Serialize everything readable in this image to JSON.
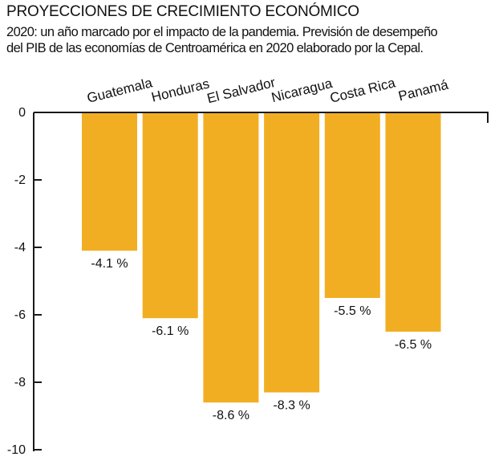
{
  "header": {
    "title": "PROYECCIONES DE CRECIMIENTO ECONÓMICO",
    "subtitle_line1": "2020: un año marcado por el impacto de la pandemia. Previsión de desempeño",
    "subtitle_line2": "del PIB de las economías de Centroamérica en 2020 elaborado por la Cepal."
  },
  "chart_data": {
    "type": "bar",
    "title": "PROYECCIONES DE CRECIMIENTO ECONÓMICO",
    "categories": [
      "Guatemala",
      "Honduras",
      "El Salvador",
      "Nicaragua",
      "Costa Rica",
      "Panamá"
    ],
    "values": [
      -4.1,
      -6.1,
      -8.6,
      -8.3,
      -5.5,
      -6.5
    ],
    "value_labels": [
      "-4.1 %",
      "-6.1 %",
      "-8.6 %",
      "-8.3 %",
      "-5.5 %",
      "-6.5 %"
    ],
    "yticks": [
      0,
      -2,
      -4,
      -6,
      -8,
      -10
    ],
    "ytick_labels": [
      "0",
      "-2",
      "-4",
      "-6",
      "-8",
      "-10"
    ],
    "ylim": [
      -10,
      0
    ],
    "xlabel": "",
    "ylabel": "",
    "bar_color": "#F2AE22",
    "axis_color": "#1a1a1a",
    "legend": "none",
    "grid": false
  }
}
